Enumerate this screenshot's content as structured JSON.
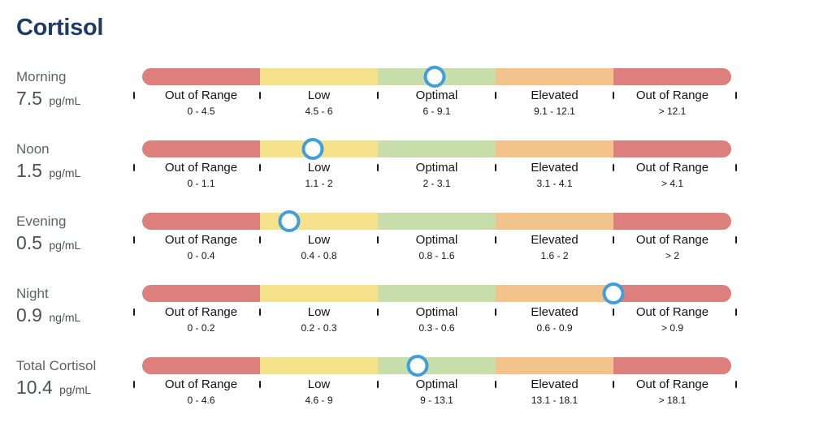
{
  "title": "Cortisol",
  "colors": {
    "title_text": "#1d3a68",
    "row_name_gray": "#5e6266",
    "row_value_gray": "#4d5154",
    "segment_red": "#dc7f7d",
    "segment_yellow": "#f5e28a",
    "segment_green": "#c8dfac",
    "segment_orange": "#f3c38c",
    "marker_ring_blue": "#3f9edb",
    "marker_fill": "#ffffff",
    "tick_black": "#1a1a1a"
  },
  "segment_color_keys": [
    "segment_red",
    "segment_yellow",
    "segment_green",
    "segment_orange",
    "segment_red"
  ],
  "rows": [
    {
      "name": "Morning",
      "value": "7.5",
      "unit": "pg/mL",
      "marker_percent": 49.7,
      "segments": [
        {
          "label": "Out of Range",
          "range": "0 - 4.5"
        },
        {
          "label": "Low",
          "range": "4.5 - 6"
        },
        {
          "label": "Optimal",
          "range": "6 - 9.1"
        },
        {
          "label": "Elevated",
          "range": "9.1 - 12.1"
        },
        {
          "label": "Out of Range",
          "range": "> 12.1"
        }
      ]
    },
    {
      "name": "Noon",
      "value": "1.5",
      "unit": "pg/mL",
      "marker_percent": 28.9,
      "segments": [
        {
          "label": "Out of Range",
          "range": "0 - 1.1"
        },
        {
          "label": "Low",
          "range": "1.1 - 2"
        },
        {
          "label": "Optimal",
          "range": "2 - 3.1"
        },
        {
          "label": "Elevated",
          "range": "3.1 - 4.1"
        },
        {
          "label": "Out of Range",
          "range": "> 4.1"
        }
      ]
    },
    {
      "name": "Evening",
      "value": "0.5",
      "unit": "pg/mL",
      "marker_percent": 25.0,
      "segments": [
        {
          "label": "Out of Range",
          "range": "0 - 0.4"
        },
        {
          "label": "Low",
          "range": "0.4 - 0.8"
        },
        {
          "label": "Optimal",
          "range": "0.8 - 1.6"
        },
        {
          "label": "Elevated",
          "range": "1.6 - 2"
        },
        {
          "label": "Out of Range",
          "range": "> 2"
        }
      ]
    },
    {
      "name": "Night",
      "value": "0.9",
      "unit": "ng/mL",
      "marker_percent": 80.0,
      "segments": [
        {
          "label": "Out of Range",
          "range": "0 - 0.2"
        },
        {
          "label": "Low",
          "range": "0.2 - 0.3"
        },
        {
          "label": "Optimal",
          "range": "0.3 - 0.6"
        },
        {
          "label": "Elevated",
          "range": "0.6 - 0.9"
        },
        {
          "label": "Out of Range",
          "range": "> 0.9"
        }
      ]
    },
    {
      "name": "Total Cortisol",
      "value": "10.4",
      "unit": "pg/mL",
      "marker_percent": 46.8,
      "segments": [
        {
          "label": "Out of Range",
          "range": "0 - 4.6"
        },
        {
          "label": "Low",
          "range": "4.6 - 9"
        },
        {
          "label": "Optimal",
          "range": "9 - 13.1"
        },
        {
          "label": "Elevated",
          "range": "13.1 - 18.1"
        },
        {
          "label": "Out of Range",
          "range": "> 18.1"
        }
      ]
    }
  ],
  "chart_data": {
    "type": "bar",
    "title": "Cortisol",
    "categories": [
      "Morning",
      "Noon",
      "Evening",
      "Night",
      "Total Cortisol"
    ],
    "values": [
      7.5,
      1.5,
      0.5,
      0.9,
      10.4
    ],
    "units": [
      "pg/mL",
      "pg/mL",
      "pg/mL",
      "ng/mL",
      "pg/mL"
    ],
    "zone_labels": [
      "Out of Range",
      "Low",
      "Optimal",
      "Elevated",
      "Out of Range"
    ],
    "zone_bounds": [
      [
        0,
        4.5,
        6,
        9.1,
        12.1
      ],
      [
        0,
        1.1,
        2,
        3.1,
        4.1
      ],
      [
        0,
        0.4,
        0.8,
        1.6,
        2
      ],
      [
        0,
        0.2,
        0.3,
        0.6,
        0.9
      ],
      [
        0,
        4.6,
        9,
        13.1,
        18.1
      ]
    ],
    "legend_position": "none",
    "grid": false
  }
}
